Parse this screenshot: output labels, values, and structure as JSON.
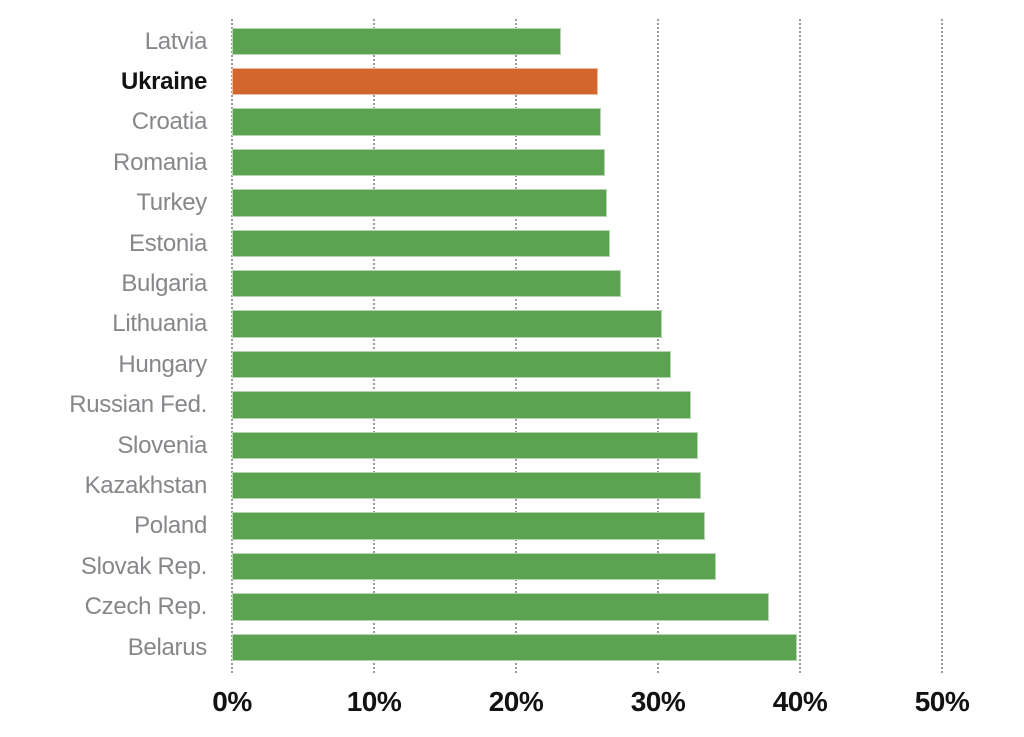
{
  "chart_data": {
    "type": "bar",
    "orientation": "horizontal",
    "title": "",
    "xlabel": "",
    "ylabel": "",
    "categories": [
      "Latvia",
      "Ukraine",
      "Croatia",
      "Romania",
      "Turkey",
      "Estonia",
      "Bulgaria",
      "Lithuania",
      "Hungary",
      "Russian Fed.",
      "Slovenia",
      "Kazakhstan",
      "Poland",
      "Slovak Rep.",
      "Czech Rep.",
      "Belarus"
    ],
    "values": [
      23.2,
      25.8,
      26.0,
      26.3,
      26.4,
      26.6,
      27.4,
      30.3,
      30.9,
      32.3,
      32.8,
      33.0,
      33.3,
      34.1,
      37.8,
      39.8
    ],
    "unit": "%",
    "highlighted_category": "Ukraine",
    "x_ticks": [
      "0%",
      "10%",
      "20%",
      "30%",
      "40%",
      "50%"
    ],
    "x_tick_values": [
      0,
      10,
      20,
      30,
      40,
      50
    ],
    "xlim": [
      0,
      50
    ],
    "grid": "dotted-vertical",
    "legend": "none",
    "colors": {
      "bar": "#5ba351",
      "highlight": "#d2662c",
      "label": "#85878a",
      "highlight_label": "#121212",
      "axis_label": "#121212",
      "gridline": "#9b9b9b"
    }
  }
}
